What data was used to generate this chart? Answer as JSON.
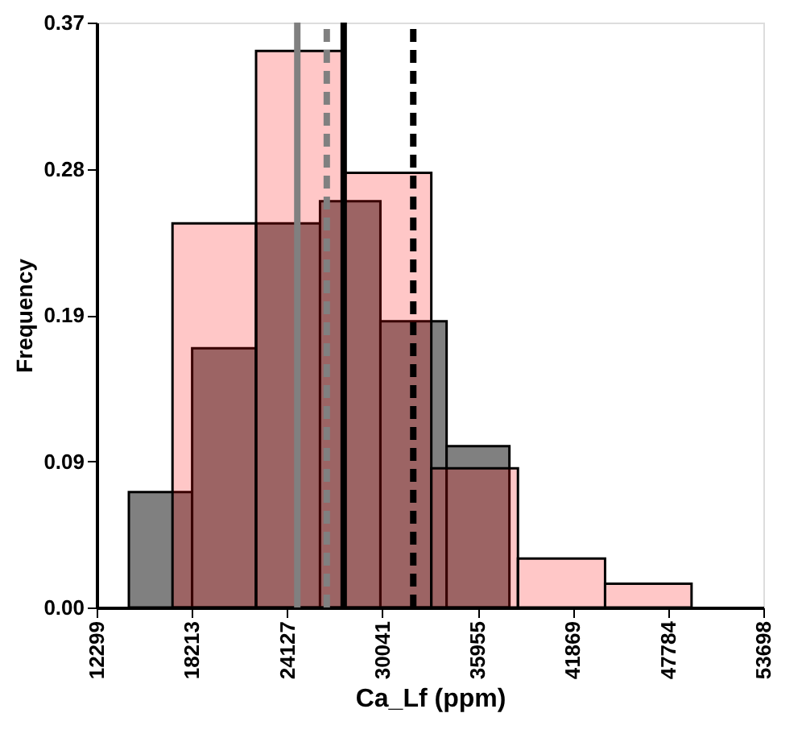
{
  "chart_data": {
    "type": "histogram",
    "xlabel": "Ca_Lf (ppm)",
    "ylabel": "Frequency",
    "xlim": [
      12299,
      53698
    ],
    "xticks": [
      12299,
      18213,
      24127,
      30041,
      35955,
      41869,
      47784,
      53698
    ],
    "ylim": [
      0,
      0.37
    ],
    "yticks": [
      {
        "value": 0,
        "label": "0.00"
      },
      {
        "value": 0.0925,
        "label": "0.09"
      },
      {
        "value": 0.185,
        "label": "0.19"
      },
      {
        "value": 0.2775,
        "label": "0.28"
      },
      {
        "value": 0.37,
        "label": "0.37"
      }
    ],
    "grid": false,
    "bins": [
      14300,
      18230,
      22200,
      26170,
      29920,
      34030,
      37930
    ],
    "series": [
      {
        "color": "#808080",
        "values": [
          0.073,
          0.164,
          0.243,
          0.257,
          0.181,
          0.102
        ]
      },
      {
        "color": "#ff0000",
        "bins": [
          17010,
          22200,
          27680,
          33080,
          38460,
          43870,
          49240
        ],
        "values": [
          0.243,
          0.352,
          0.275,
          0.088,
          0.031,
          0.015
        ]
      }
    ],
    "ref_lines": [
      {
        "axis": "x",
        "value": 24760,
        "color": "#808080",
        "line_style": "solid"
      },
      {
        "axis": "x",
        "value": 26590,
        "color": "#808080",
        "line_style": "dashed"
      },
      {
        "axis": "x",
        "value": 27640,
        "color": "#000000",
        "line_style": "solid"
      },
      {
        "axis": "x",
        "value": 31960,
        "color": "#000000",
        "line_style": "dashed"
      }
    ]
  }
}
